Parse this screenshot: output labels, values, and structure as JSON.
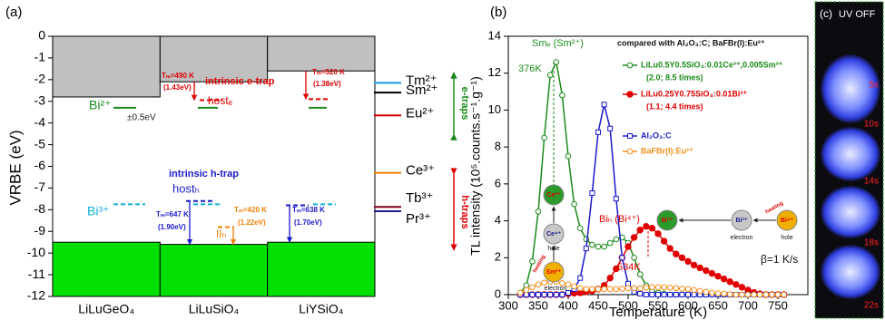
{
  "chart_data": [
    {
      "type": "energy_levels",
      "title": "(a)",
      "ylabel": "VRBE (eV)",
      "categories": [
        "LiLuGeO₄",
        "LiLuSiO₄",
        "LiYSiO₄"
      ],
      "ylim": [
        -12,
        0
      ],
      "yticks": [
        0,
        -1,
        -2,
        -3,
        -4,
        -5,
        -6,
        -7,
        -8,
        -9,
        -10,
        -11,
        -12
      ],
      "conduction_band_bottom": [
        -2.8,
        -2.1,
        -1.6
      ],
      "conduction_band_color": "#c0c0c0",
      "valence_band_top": [
        -9.5,
        -9.6,
        -9.5
      ],
      "valence_band_color": "#00e000",
      "levels": [
        {
          "color": "#1a8a1a",
          "dashed": false,
          "values": [
            -3.3,
            -3.3,
            -3.3
          ]
        },
        {
          "color": "#10b0d8",
          "dashed": true,
          "values": [
            -7.75,
            -7.75,
            -7.75
          ]
        },
        {
          "color": "#e00000",
          "dashed": true,
          "values": [
            null,
            -2.95,
            -2.9
          ]
        },
        {
          "color": "#1a1acc",
          "dashed": true,
          "values": [
            null,
            -7.6,
            -7.8
          ]
        },
        {
          "color": "#f08000",
          "dashed": true,
          "values": [
            null,
            -8.8,
            null
          ]
        }
      ],
      "ions": {
        "labels": [
          "Tm²⁺",
          "Sm²⁺",
          "Eu²⁺",
          "Ce³⁺",
          "Tb³⁺",
          "Pr³⁺"
        ],
        "values": [
          -2.15,
          -2.6,
          -3.65,
          -6.3,
          -7.87,
          -8.07
        ],
        "colors": [
          "#1a9af0",
          "#000000",
          "#e00000",
          "#f08000",
          "#800020",
          "#1a1a8a"
        ]
      },
      "annotations": [
        "Bi²⁺",
        "±0.5eV",
        "Bi³⁺",
        "Tₘ=490 K",
        "(1.43eV)",
        "intrinsic e-trap",
        "hostₑ",
        "Tₘ=520 K",
        "(1.38eV)",
        "intrinsic h-trap",
        "hostₕ",
        "Tₘ=647 K",
        "(1.90eV)",
        "IIₕ",
        "Tₘ=420 K",
        "(1.22eV)",
        "Tₘ=638 K",
        "(1.70eV)",
        "e-traps",
        "h-traps"
      ]
    },
    {
      "type": "line",
      "title": "(b)",
      "xlabel": "Temperature (K)",
      "ylabel": "TL intensity (10⁵.counts.s⁻¹.g⁻¹)",
      "xlim": [
        300,
        800
      ],
      "xticks": [
        300,
        350,
        400,
        450,
        500,
        550,
        600,
        650,
        700,
        750
      ],
      "ylim": [
        0,
        14
      ],
      "yticks": [
        0,
        2,
        4,
        6,
        8,
        10,
        12,
        14
      ],
      "x": [
        320,
        330,
        340,
        350,
        360,
        370,
        380,
        390,
        400,
        410,
        420,
        430,
        440,
        450,
        460,
        470,
        480,
        490,
        500,
        510,
        520,
        530,
        540,
        550,
        560,
        570,
        580,
        590,
        600,
        610,
        620,
        630,
        640,
        650,
        660,
        670,
        680,
        690,
        700,
        710,
        720,
        730,
        740,
        750,
        760
      ],
      "series": [
        {
          "name": "LiLu0.5Y0.5SiO₄:0.01Ce³⁺,0.005Sm³⁺",
          "subtitle": "(2.0;  8.5 times)",
          "color": "#1a8a1a",
          "marker": "open-circle",
          "values": [
            0.1,
            0.5,
            1.8,
            4.5,
            8.5,
            11.9,
            12.6,
            10.8,
            7.5,
            4.9,
            3.6,
            3.0,
            2.7,
            2.6,
            2.6,
            2.8,
            3.0,
            3.1,
            2.8,
            2.0,
            1.1,
            0.5,
            0.2,
            0.1,
            0.05,
            0,
            0,
            0,
            0,
            0,
            0,
            0,
            0,
            0,
            0,
            0,
            0,
            0,
            0,
            0,
            0,
            0,
            0,
            0,
            0
          ]
        },
        {
          "name": "LiLu0.25Y0.75SiO₄:0.01Bi³⁺",
          "subtitle": "(1.1; 4.4 times)",
          "color": "#e00000",
          "marker": "filled-circle",
          "values": [
            0,
            0,
            0,
            0,
            0,
            0,
            0,
            0,
            0.05,
            0.08,
            0.1,
            0.15,
            0.2,
            0.3,
            0.5,
            0.9,
            1.4,
            2.0,
            2.6,
            3.1,
            3.5,
            3.7,
            3.6,
            3.3,
            2.9,
            2.5,
            2.2,
            2.0,
            1.8,
            1.6,
            1.45,
            1.3,
            1.15,
            1.0,
            0.85,
            0.7,
            0.55,
            0.4,
            0.25,
            0.12,
            0.05,
            0,
            0,
            0,
            0
          ]
        },
        {
          "name": "Al₂O₃:C",
          "color": "#1a1acc",
          "marker": "open-square",
          "values": [
            0,
            0,
            0,
            0,
            0,
            0,
            0,
            0,
            0.1,
            0.3,
            0.9,
            2.5,
            5.5,
            8.8,
            10.3,
            9.0,
            5.2,
            2.0,
            0.6,
            0.15,
            0.05,
            0,
            0,
            0,
            0,
            0,
            0,
            0,
            0,
            0,
            0,
            0,
            0,
            0,
            0,
            0,
            0,
            0,
            0,
            0,
            0,
            0,
            0,
            0,
            0
          ]
        },
        {
          "name": "BaFBr(I):Eu²⁺",
          "color": "#f09020",
          "marker": "open-circle",
          "values": [
            0.1,
            0.25,
            0.4,
            0.55,
            0.65,
            0.7,
            0.7,
            0.62,
            0.55,
            0.45,
            0.35,
            0.3,
            0.3,
            0.3,
            0.3,
            0.3,
            0.3,
            0.32,
            0.35,
            0.35,
            0.35,
            0.38,
            0.4,
            0.4,
            0.4,
            0.38,
            0.35,
            0.32,
            0.3,
            0.25,
            0.2,
            0.15,
            0.1,
            0.07,
            0.05,
            0.02,
            0,
            0,
            0,
            0,
            0,
            0,
            0,
            0,
            0
          ]
        }
      ],
      "annotations": [
        "Smₑ (Sm²⁺)",
        "376K",
        "compared with Al₂O₃:C; BaFBr(I):Eu²⁺",
        "Biₕ (Bi⁴⁺)",
        "534K",
        "β=1 K/s",
        "Ce³⁺",
        "Ce⁴⁺",
        "hole",
        "heating",
        "Sm²⁺",
        "electron",
        "Bi³⁺",
        "Bi²⁺",
        "electron",
        "Bi⁴⁺",
        "hole",
        "heating"
      ]
    }
  ],
  "photo": {
    "title": "(c)",
    "label": "UV OFF",
    "times": [
      "5s",
      "10s",
      "14s",
      "18s",
      "22s"
    ]
  }
}
